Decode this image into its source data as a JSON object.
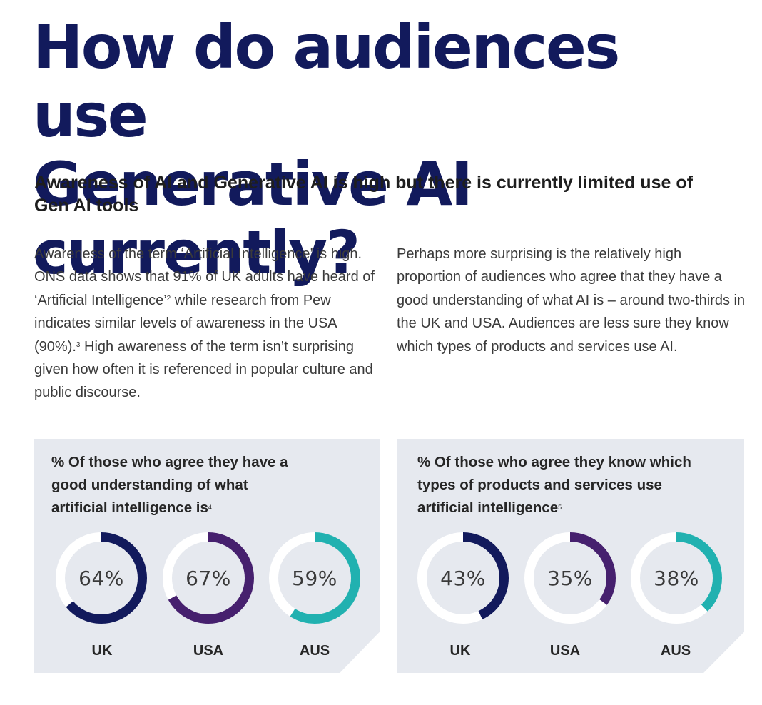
{
  "title": {
    "line1": "How do audiences use",
    "line2": "Generative AI currently?"
  },
  "subtitle": "Awareness of AI and Generative AI is high but there is currently limited use of Gen AI tools",
  "left_column": {
    "part1": "Awareness of the term ‘Artificial Intelligence’ is high. ONS data shows that 91% of UK adults have heard of ‘Artificial Intelligence’",
    "ref1": "2",
    "part2": " while research from Pew indicates similar levels of awareness in the USA (90%).",
    "ref2": "3",
    "part3": "  High awareness of the term isn’t surprising given how often it is referenced in popular culture and public discourse."
  },
  "right_column": {
    "text": "Perhaps more surprising is the relatively high proportion of audiences who agree that they have a good understanding of what AI is – around two-thirds in the UK and USA. Audiences are less sure they know which types of products and services use AI."
  },
  "colors": {
    "title": "#121a5c",
    "UK": "#121a5c",
    "USA": "#46206e",
    "AUS": "#21b1b0",
    "track": "#ffffff",
    "panel": "#e6e9ef"
  },
  "panels": [
    {
      "title": "% Of those who agree they have a good understanding of what artificial intelligence is",
      "ref": "4",
      "items": [
        {
          "country": "UK",
          "value": 64,
          "label": "64%"
        },
        {
          "country": "USA",
          "value": 67,
          "label": "67%"
        },
        {
          "country": "AUS",
          "value": 59,
          "label": "59%"
        }
      ]
    },
    {
      "title": "% Of those who agree they know which types of products and services use artificial intelligence",
      "ref": "5",
      "items": [
        {
          "country": "UK",
          "value": 43,
          "label": "43%"
        },
        {
          "country": "USA",
          "value": 35,
          "label": "35%"
        },
        {
          "country": "AUS",
          "value": 38,
          "label": "38%"
        }
      ]
    }
  ]
}
